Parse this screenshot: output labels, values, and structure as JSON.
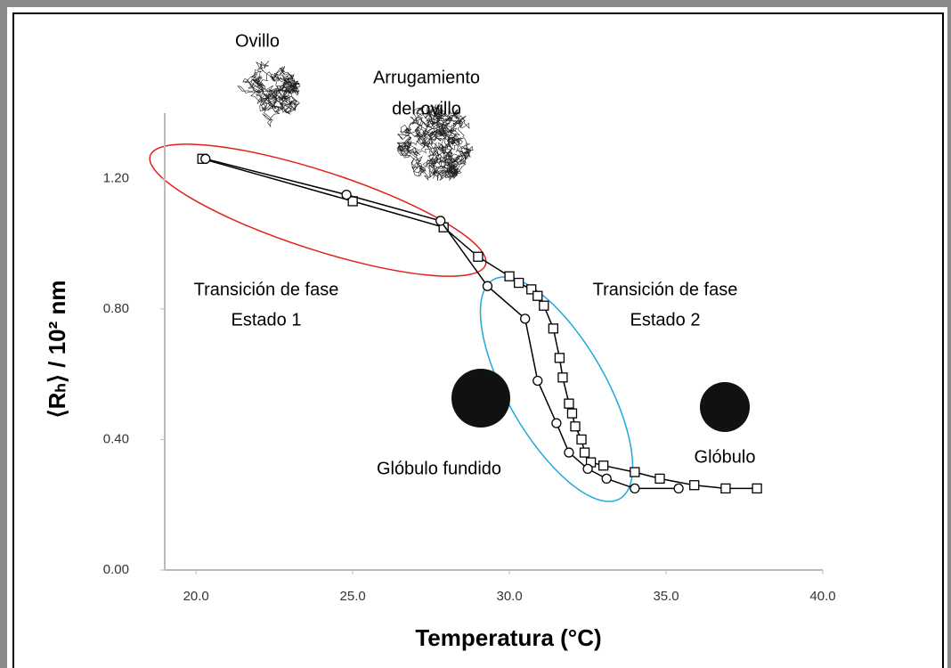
{
  "chart_data": {
    "type": "line",
    "x_label": "Temperatura (°C)",
    "y_label": "⟨Rₕ⟩ / 10² nm",
    "xlim": [
      19,
      40
    ],
    "xticks": [
      {
        "value": 20,
        "label": "20.0"
      },
      {
        "value": 25,
        "label": "25.0"
      },
      {
        "value": 30,
        "label": "30.0"
      },
      {
        "value": 35,
        "label": "35.0"
      },
      {
        "value": 40,
        "label": "40.0"
      }
    ],
    "ylim": [
      0,
      1.4
    ],
    "yticks": [
      {
        "value": 0,
        "label": "0.00"
      },
      {
        "value": 0.4,
        "label": "0.40"
      },
      {
        "value": 0.8,
        "label": "0.80"
      },
      {
        "value": 1.2,
        "label": "1.20"
      }
    ],
    "series": [
      {
        "marker": "square",
        "color": "#000000",
        "x": [
          20.2,
          25.0,
          27.9,
          29.0,
          30.0,
          30.3,
          30.7,
          30.9,
          31.1,
          31.4,
          31.6,
          31.7,
          31.9,
          32.0,
          32.1,
          32.3,
          32.4,
          32.6,
          33.0,
          34.0,
          34.8,
          35.9,
          36.9,
          37.9
        ],
        "values": [
          1.26,
          1.13,
          1.05,
          0.96,
          0.9,
          0.88,
          0.86,
          0.84,
          0.81,
          0.74,
          0.65,
          0.59,
          0.51,
          0.48,
          0.44,
          0.4,
          0.36,
          0.33,
          0.32,
          0.3,
          0.28,
          0.26,
          0.25,
          0.25
        ]
      },
      {
        "marker": "circle",
        "color": "#000000",
        "x": [
          20.3,
          24.8,
          27.8,
          29.3,
          30.5,
          30.9,
          31.5,
          31.9,
          32.5,
          33.1,
          34.0,
          35.4
        ],
        "values": [
          1.26,
          1.15,
          1.07,
          0.87,
          0.77,
          0.58,
          0.45,
          0.36,
          0.31,
          0.28,
          0.25,
          0.25
        ]
      }
    ],
    "annotations": {
      "coil": "Ovillo",
      "crumpled": [
        "Arrugamiento",
        "del ovillo"
      ],
      "state1": {
        "text": [
          "Transición de fase",
          "Estado 1"
        ],
        "color": "#e0201b"
      },
      "state2": {
        "text": [
          "Transición de fase",
          "Estado 2"
        ],
        "color": "#1fa8dc"
      },
      "molten": "Glóbulo fundido",
      "globule": "Glóbulo"
    }
  }
}
